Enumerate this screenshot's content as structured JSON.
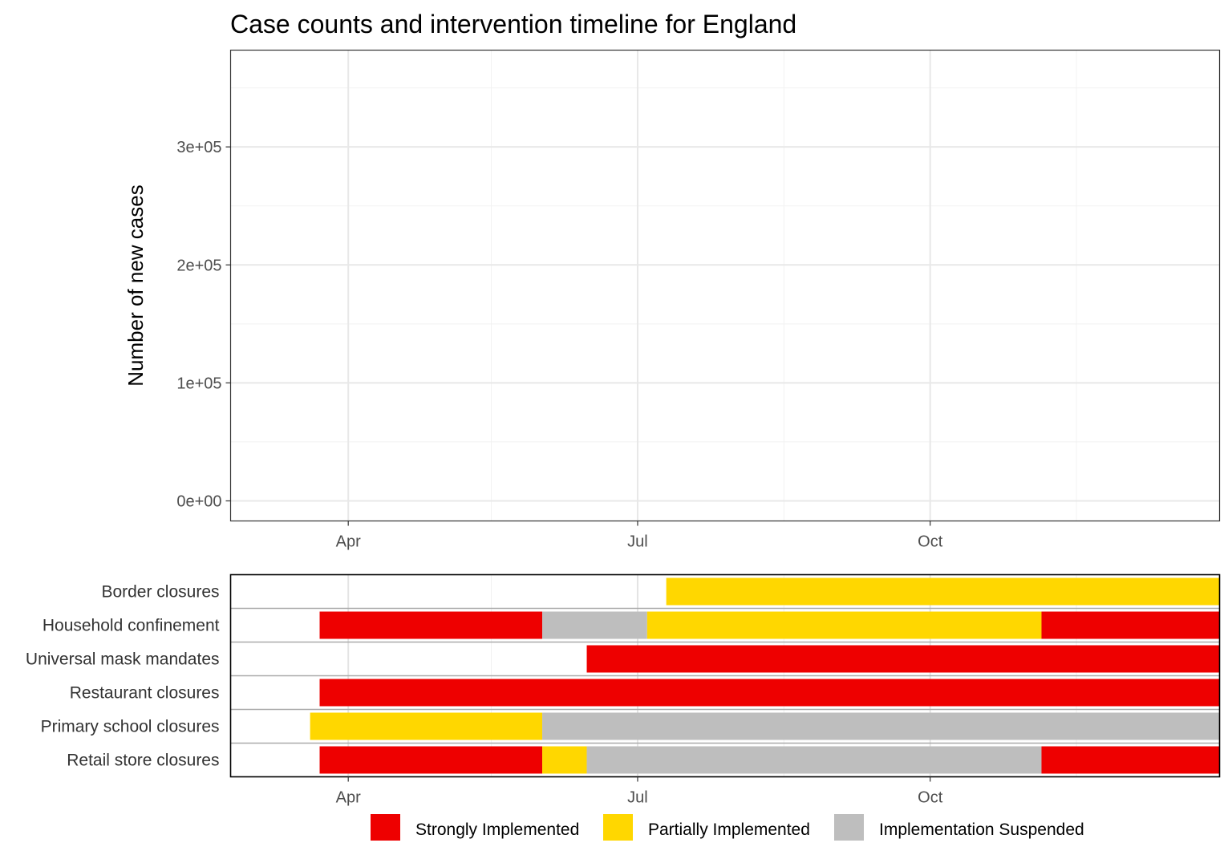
{
  "chart_data": [
    {
      "type": "bar",
      "title": "Case counts and intervention timeline for England",
      "ylabel": "Number of new cases",
      "xlabel": "",
      "x_ticks": [
        "Apr",
        "Jul",
        "Oct"
      ],
      "y_ticks": [
        "0e+00",
        "1e+05",
        "2e+05",
        "3e+05"
      ],
      "ylim": [
        -17000,
        382000
      ],
      "xlim": [
        "2020-02-24",
        "2020-12-31"
      ],
      "grid": true,
      "series": [
        {
          "kind": "bar",
          "x_start": "2020-03-01",
          "values": [
            0,
            0,
            0,
            0,
            0,
            0,
            0,
            0,
            0,
            0,
            0,
            0,
            0,
            0,
            0,
            0,
            0,
            0,
            0,
            0,
            0,
            0,
            0,
            0,
            0,
            0,
            0,
            0,
            0,
            0,
            0,
            0,
            0,
            0,
            0,
            0,
            0,
            0,
            0,
            0,
            0,
            0,
            0,
            0,
            0,
            0,
            0,
            0,
            0,
            0,
            0,
            0,
            0,
            0,
            0,
            0,
            0,
            0,
            0,
            0,
            0,
            0,
            0,
            0,
            0,
            0,
            0,
            0,
            0,
            0,
            0,
            0,
            0,
            0,
            0,
            0,
            0,
            0,
            0,
            0,
            0,
            0,
            0,
            0,
            0,
            0,
            0,
            0,
            0,
            0,
            0,
            0,
            0,
            0,
            0,
            0,
            0,
            0,
            0,
            0,
            0,
            0,
            0,
            0,
            0,
            0,
            0,
            0,
            0,
            0,
            0,
            0,
            0,
            0,
            0,
            0,
            0,
            0,
            0,
            0,
            0,
            0,
            0,
            0,
            0,
            0,
            0,
            0,
            0,
            0,
            0,
            0,
            0,
            0,
            0,
            0,
            0,
            0,
            0,
            0,
            0,
            0,
            0,
            0,
            0,
            0,
            0,
            0,
            0,
            0,
            0,
            0,
            0,
            0,
            0,
            0,
            0,
            0,
            0,
            0,
            0,
            0,
            0,
            0,
            0,
            0,
            0,
            0,
            0,
            0,
            0,
            0,
            0,
            0,
            0,
            0,
            0,
            0,
            0,
            0,
            0,
            0,
            0,
            0,
            0,
            0,
            0,
            0,
            0,
            0,
            0,
            0,
            0,
            0,
            0,
            0,
            0,
            0,
            0,
            0,
            0,
            0,
            0,
            0,
            0,
            0,
            0,
            0,
            0,
            0,
            0,
            0,
            0,
            0,
            0,
            0,
            0,
            0,
            0,
            0,
            0,
            0,
            0,
            0,
            0,
            0,
            0,
            0,
            0,
            0,
            0,
            0,
            0,
            0,
            0,
            0,
            0,
            0,
            0,
            0,
            0,
            0,
            0,
            0,
            0,
            0,
            0,
            0,
            0,
            0,
            0,
            0,
            0,
            0,
            0,
            0,
            0,
            0,
            0,
            0,
            0,
            0,
            0,
            0,
            0,
            0,
            0,
            0,
            0,
            0,
            0,
            0,
            0,
            0,
            0,
            0,
            0,
            0,
            0,
            0,
            0,
            0,
            0,
            0,
            0,
            0,
            0,
            0,
            0,
            0,
            0,
            0,
            0,
            0,
            0,
            0,
            0,
            0,
            0,
            0,
            0,
            0,
            0,
            0,
            0,
            0,
            0,
            0,
            0,
            0,
            0,
            0,
            0,
            0,
            0,
            0,
            0,
            0,
            0,
            0
          ]
        },
        {
          "kind": "line",
          "x_start": "2020-03-01",
          "values": []
        }
      ]
    },
    {
      "type": "bar",
      "title": "",
      "x_ticks": [
        "Apr",
        "Jul",
        "Oct"
      ],
      "categories": [
        "Border closures",
        "Household confinement",
        "Universal mask mandates",
        "Restaurant closures",
        "Primary school closures",
        "Retail store closures"
      ],
      "xlim": [
        "2020-02-24",
        "2020-12-31"
      ],
      "segments": [
        [
          {
            "start": "2020-07-10",
            "end": "2020-12-31",
            "level": "Partially Implemented"
          }
        ],
        [
          {
            "start": "2020-03-23",
            "end": "2020-06-01",
            "level": "Strongly Implemented"
          },
          {
            "start": "2020-06-01",
            "end": "2020-07-04",
            "level": "Implementation Suspended"
          },
          {
            "start": "2020-07-04",
            "end": "2020-11-05",
            "level": "Partially Implemented"
          },
          {
            "start": "2020-11-05",
            "end": "2020-12-31",
            "level": "Strongly Implemented"
          }
        ],
        [
          {
            "start": "2020-06-15",
            "end": "2020-12-31",
            "level": "Strongly Implemented"
          }
        ],
        [
          {
            "start": "2020-03-23",
            "end": "2020-12-31",
            "level": "Strongly Implemented"
          }
        ],
        [
          {
            "start": "2020-03-20",
            "end": "2020-06-01",
            "level": "Partially Implemented"
          },
          {
            "start": "2020-06-01",
            "end": "2020-12-31",
            "level": "Implementation Suspended"
          }
        ],
        [
          {
            "start": "2020-03-23",
            "end": "2020-06-01",
            "level": "Strongly Implemented"
          },
          {
            "start": "2020-06-01",
            "end": "2020-06-15",
            "level": "Partially Implemented"
          },
          {
            "start": "2020-06-15",
            "end": "2020-11-05",
            "level": "Implementation Suspended"
          },
          {
            "start": "2020-11-05",
            "end": "2020-12-31",
            "level": "Strongly Implemented"
          }
        ]
      ],
      "legend": {
        "placement": "bottom",
        "items": [
          {
            "label": "Strongly Implemented",
            "color": "#ee0000"
          },
          {
            "label": "Partially Implemented",
            "color": "#ffd700"
          },
          {
            "label": "Implementation Suspended",
            "color": "#bebebe"
          }
        ]
      }
    }
  ],
  "colors": {
    "bar": "#595959",
    "line": "#00008b",
    "grid": "#ebebeb"
  }
}
